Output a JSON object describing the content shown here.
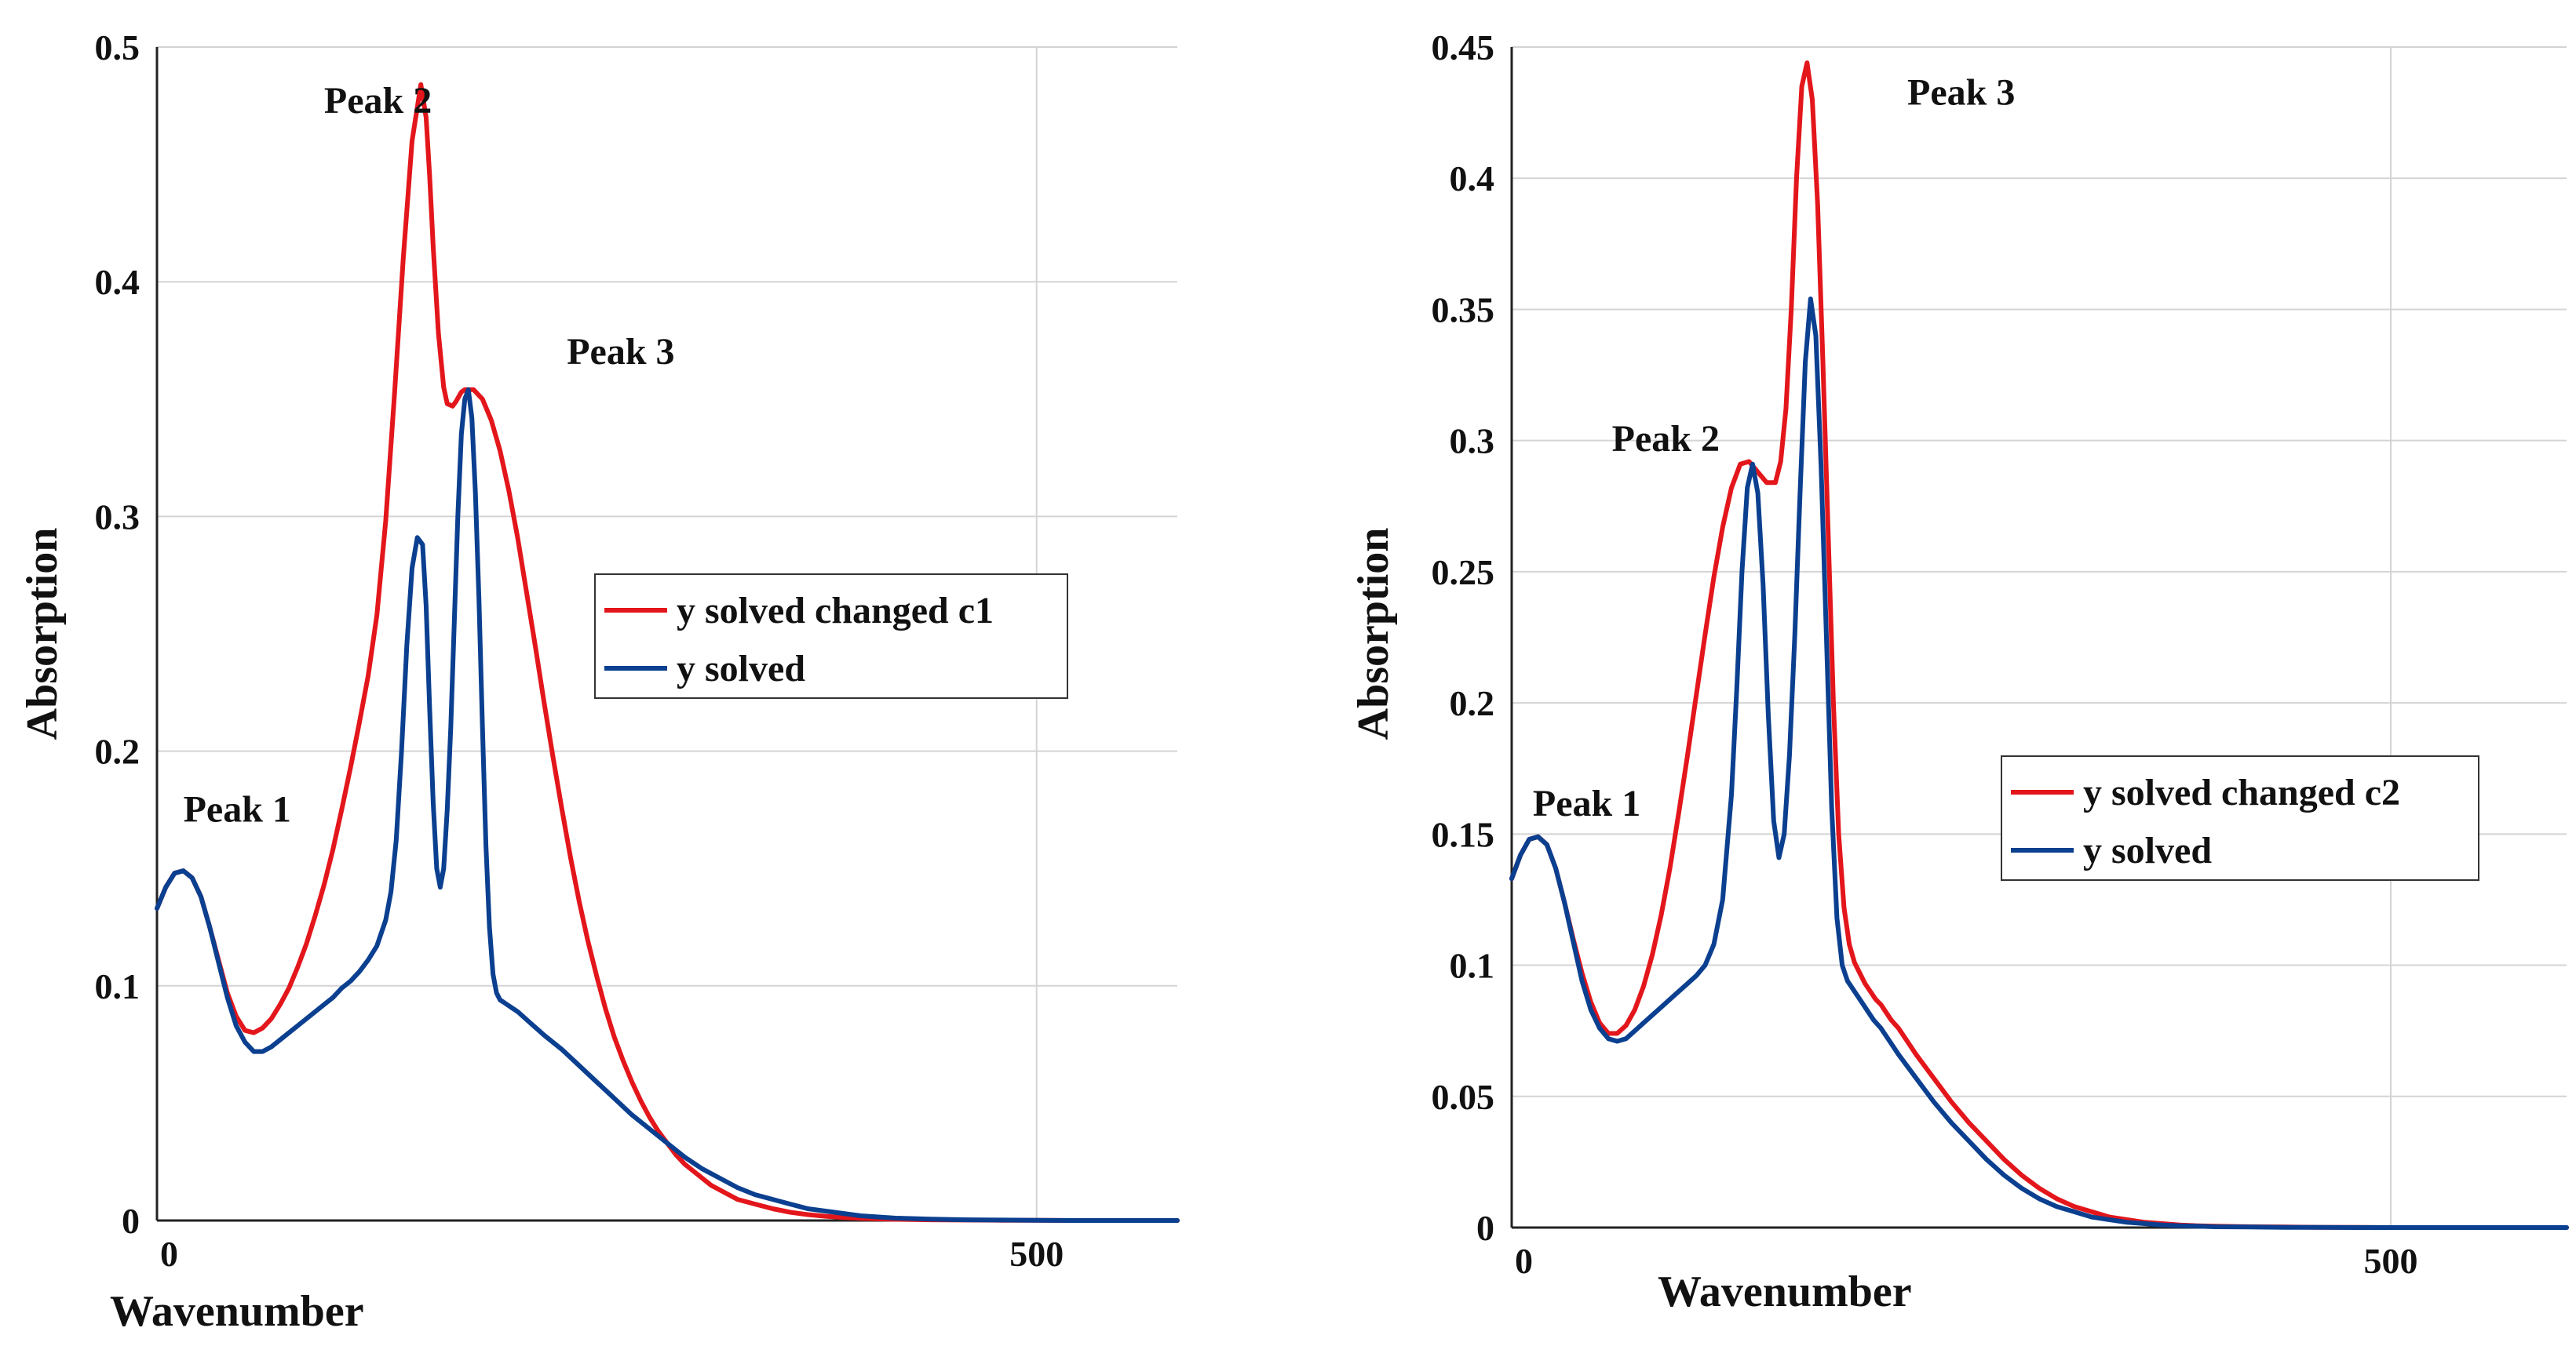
{
  "chart_data": [
    {
      "type": "line",
      "title": "",
      "xlabel": "Wavenumber",
      "ylabel": "Absorption",
      "xlim": [
        0,
        580
      ],
      "ylim": [
        0,
        0.5
      ],
      "xticks": [
        0,
        500
      ],
      "xtick_labels": [
        "0",
        "500"
      ],
      "yticks": [
        0,
        0.1,
        0.2,
        0.3,
        0.4,
        0.5
      ],
      "ytick_labels": [
        "0",
        "0.1",
        "0.2",
        "0.3",
        "0.4",
        "0.5"
      ],
      "grid": true,
      "legend_position": "center-right",
      "legend": [
        "y solved changed c1",
        "y solved"
      ],
      "colors": {
        "y solved changed c1": "#e3161b",
        "y solved": "#0b3f8f"
      },
      "series": [
        {
          "name": "y solved changed c1",
          "x": [
            0,
            5,
            10,
            15,
            20,
            25,
            30,
            35,
            40,
            45,
            50,
            55,
            60,
            65,
            70,
            75,
            80,
            85,
            90,
            95,
            100,
            105,
            110,
            115,
            120,
            125,
            130,
            135,
            140,
            145,
            150,
            153,
            155,
            157,
            160,
            163,
            165,
            168,
            170,
            173,
            175,
            180,
            185,
            190,
            195,
            200,
            205,
            210,
            215,
            220,
            225,
            230,
            235,
            240,
            245,
            250,
            255,
            260,
            265,
            270,
            275,
            280,
            285,
            290,
            295,
            300,
            305,
            310,
            315,
            320,
            325,
            330,
            340,
            350,
            360,
            370,
            380,
            390,
            400,
            420,
            440,
            460,
            480,
            500,
            520,
            540,
            560,
            580
          ],
          "y": [
            0.133,
            0.142,
            0.148,
            0.149,
            0.146,
            0.138,
            0.125,
            0.111,
            0.097,
            0.087,
            0.081,
            0.08,
            0.082,
            0.086,
            0.092,
            0.099,
            0.108,
            0.118,
            0.13,
            0.143,
            0.158,
            0.175,
            0.193,
            0.212,
            0.232,
            0.258,
            0.298,
            0.352,
            0.41,
            0.46,
            0.484,
            0.47,
            0.445,
            0.415,
            0.378,
            0.355,
            0.348,
            0.347,
            0.349,
            0.353,
            0.354,
            0.354,
            0.35,
            0.341,
            0.328,
            0.311,
            0.291,
            0.268,
            0.245,
            0.221,
            0.198,
            0.176,
            0.155,
            0.136,
            0.119,
            0.104,
            0.09,
            0.078,
            0.068,
            0.059,
            0.051,
            0.044,
            0.038,
            0.033,
            0.028,
            0.024,
            0.021,
            0.018,
            0.015,
            0.013,
            0.011,
            0.009,
            0.007,
            0.005,
            0.0035,
            0.0025,
            0.0018,
            0.0013,
            0.0009,
            0.0005,
            0.0003,
            0.0002,
            0.0001,
            0.0001,
            0.0,
            0.0,
            0.0,
            0.0
          ]
        },
        {
          "name": "y solved",
          "x": [
            0,
            5,
            10,
            15,
            20,
            25,
            30,
            35,
            40,
            45,
            50,
            55,
            60,
            65,
            70,
            75,
            80,
            85,
            90,
            95,
            100,
            105,
            110,
            115,
            120,
            125,
            130,
            133,
            136,
            139,
            142,
            145,
            148,
            151,
            153,
            155,
            157,
            159,
            161,
            163,
            165,
            167,
            169,
            171,
            173,
            175,
            177,
            179,
            181,
            183,
            185,
            187,
            189,
            191,
            193,
            195,
            197,
            199,
            201,
            203,
            205,
            208,
            211,
            214,
            217,
            220,
            225,
            230,
            240,
            250,
            260,
            270,
            280,
            290,
            300,
            310,
            320,
            330,
            340,
            350,
            360,
            370,
            380,
            390,
            400,
            420,
            440,
            460,
            480,
            500,
            520,
            540,
            560,
            580
          ],
          "y": [
            0.133,
            0.142,
            0.148,
            0.149,
            0.146,
            0.138,
            0.125,
            0.11,
            0.095,
            0.083,
            0.076,
            0.072,
            0.072,
            0.074,
            0.077,
            0.08,
            0.083,
            0.086,
            0.089,
            0.092,
            0.095,
            0.099,
            0.102,
            0.106,
            0.111,
            0.117,
            0.128,
            0.14,
            0.162,
            0.2,
            0.245,
            0.278,
            0.291,
            0.288,
            0.262,
            0.218,
            0.178,
            0.15,
            0.142,
            0.15,
            0.175,
            0.21,
            0.255,
            0.3,
            0.335,
            0.35,
            0.354,
            0.342,
            0.31,
            0.265,
            0.21,
            0.16,
            0.125,
            0.105,
            0.097,
            0.094,
            0.093,
            0.092,
            0.091,
            0.09,
            0.089,
            0.087,
            0.085,
            0.083,
            0.081,
            0.079,
            0.076,
            0.073,
            0.066,
            0.059,
            0.052,
            0.045,
            0.039,
            0.033,
            0.027,
            0.022,
            0.018,
            0.014,
            0.011,
            0.009,
            0.007,
            0.005,
            0.004,
            0.003,
            0.002,
            0.001,
            0.0006,
            0.0003,
            0.0002,
            0.0001,
            0.0,
            0.0,
            0.0,
            0.0
          ]
        }
      ],
      "annotations": [
        {
          "text": "Peak 1",
          "x": 15,
          "y": 0.17
        },
        {
          "text": "Peak 2",
          "x": 95,
          "y": 0.472
        },
        {
          "text": "Peak 3",
          "x": 233,
          "y": 0.365
        }
      ]
    },
    {
      "type": "line",
      "title": "",
      "xlabel": "Wavenumber",
      "ylabel": "Absorption",
      "xlim": [
        0,
        600
      ],
      "ylim": [
        0,
        0.45
      ],
      "xticks": [
        0,
        500
      ],
      "xtick_labels": [
        "0",
        "500"
      ],
      "yticks": [
        0,
        0.05,
        0.1,
        0.15,
        0.2,
        0.25,
        0.3,
        0.35,
        0.4,
        0.45
      ],
      "ytick_labels": [
        "0",
        "0.05",
        "0.1",
        "0.15",
        "0.2",
        "0.25",
        "0.3",
        "0.35",
        "0.4",
        "0.45"
      ],
      "grid": true,
      "legend_position": "center-right",
      "legend": [
        "y solved changed c2",
        "y solved"
      ],
      "colors": {
        "y solved changed c2": "#e3161b",
        "y solved": "#0b3f8f"
      },
      "series": [
        {
          "name": "y solved changed c2",
          "x": [
            0,
            5,
            10,
            15,
            20,
            25,
            30,
            35,
            40,
            45,
            50,
            55,
            60,
            65,
            70,
            75,
            80,
            85,
            90,
            95,
            100,
            105,
            110,
            115,
            120,
            125,
            130,
            135,
            140,
            145,
            150,
            153,
            156,
            159,
            162,
            165,
            168,
            171,
            174,
            177,
            180,
            183,
            186,
            189,
            192,
            195,
            198,
            201,
            204,
            207,
            210,
            213,
            216,
            220,
            225,
            230,
            240,
            250,
            260,
            270,
            280,
            290,
            300,
            310,
            320,
            330,
            340,
            350,
            360,
            370,
            380,
            390,
            400,
            420,
            440,
            460,
            480,
            500,
            520,
            540,
            560,
            580,
            600
          ],
          "y": [
            0.133,
            0.142,
            0.148,
            0.149,
            0.146,
            0.137,
            0.124,
            0.11,
            0.097,
            0.086,
            0.078,
            0.074,
            0.074,
            0.077,
            0.083,
            0.092,
            0.104,
            0.119,
            0.137,
            0.158,
            0.18,
            0.203,
            0.226,
            0.248,
            0.267,
            0.282,
            0.291,
            0.292,
            0.288,
            0.284,
            0.284,
            0.292,
            0.312,
            0.35,
            0.4,
            0.435,
            0.444,
            0.43,
            0.39,
            0.33,
            0.265,
            0.2,
            0.15,
            0.122,
            0.108,
            0.101,
            0.097,
            0.093,
            0.09,
            0.087,
            0.085,
            0.082,
            0.079,
            0.076,
            0.071,
            0.066,
            0.057,
            0.048,
            0.04,
            0.033,
            0.026,
            0.02,
            0.015,
            0.011,
            0.008,
            0.006,
            0.004,
            0.003,
            0.002,
            0.0015,
            0.001,
            0.0007,
            0.0005,
            0.0003,
            0.0002,
            0.0001,
            0.0001,
            0.0,
            0.0,
            0.0,
            0.0,
            0.0,
            0.0
          ]
        },
        {
          "name": "y solved",
          "x": [
            0,
            5,
            10,
            15,
            20,
            25,
            30,
            35,
            40,
            45,
            50,
            55,
            60,
            65,
            70,
            75,
            80,
            85,
            90,
            95,
            100,
            105,
            110,
            115,
            120,
            125,
            128,
            131,
            134,
            137,
            140,
            143,
            146,
            149,
            152,
            155,
            158,
            161,
            164,
            167,
            170,
            173,
            176,
            179,
            182,
            185,
            188,
            191,
            194,
            197,
            200,
            203,
            206,
            210,
            215,
            220,
            230,
            240,
            250,
            260,
            270,
            280,
            290,
            300,
            310,
            320,
            330,
            340,
            350,
            360,
            370,
            380,
            390,
            400,
            420,
            440,
            460,
            480,
            500,
            520,
            540,
            560,
            580,
            600
          ],
          "y": [
            0.133,
            0.142,
            0.148,
            0.149,
            0.146,
            0.137,
            0.124,
            0.109,
            0.094,
            0.083,
            0.076,
            0.072,
            0.071,
            0.072,
            0.075,
            0.078,
            0.081,
            0.084,
            0.087,
            0.09,
            0.093,
            0.096,
            0.1,
            0.108,
            0.125,
            0.165,
            0.205,
            0.25,
            0.282,
            0.291,
            0.28,
            0.245,
            0.195,
            0.155,
            0.141,
            0.15,
            0.18,
            0.225,
            0.28,
            0.33,
            0.354,
            0.34,
            0.29,
            0.225,
            0.16,
            0.118,
            0.1,
            0.094,
            0.091,
            0.088,
            0.085,
            0.082,
            0.079,
            0.076,
            0.071,
            0.066,
            0.057,
            0.048,
            0.04,
            0.033,
            0.026,
            0.02,
            0.015,
            0.011,
            0.008,
            0.006,
            0.004,
            0.003,
            0.002,
            0.0015,
            0.001,
            0.0007,
            0.0005,
            0.0003,
            0.0002,
            0.0001,
            0.0001,
            0.0,
            0.0,
            0.0,
            0.0,
            0.0,
            0.0,
            0.0
          ]
        }
      ],
      "annotations": [
        {
          "text": "Peak 1",
          "x": 12,
          "y": 0.157
        },
        {
          "text": "Peak 2",
          "x": 57,
          "y": 0.296
        },
        {
          "text": "Peak 3",
          "x": 225,
          "y": 0.428
        }
      ]
    }
  ]
}
